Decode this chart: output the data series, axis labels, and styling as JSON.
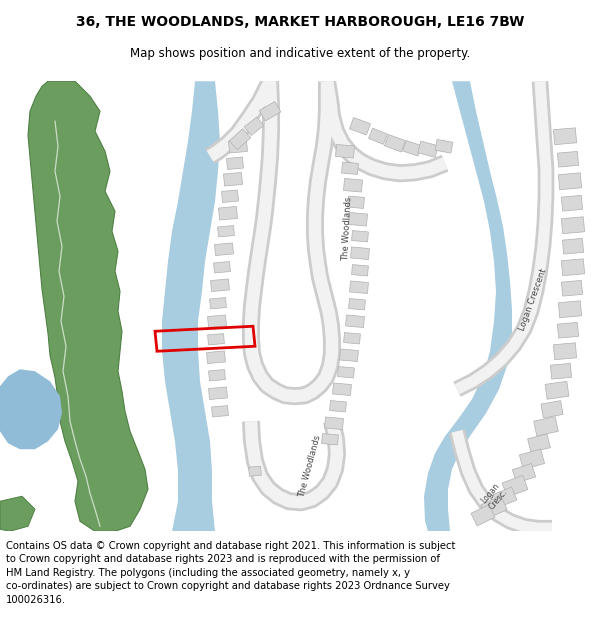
{
  "title": "36, THE WOODLANDS, MARKET HARBOROUGH, LE16 7BW",
  "subtitle": "Map shows position and indicative extent of the property.",
  "footer": "Contains OS data © Crown copyright and database right 2021. This information is subject\nto Crown copyright and database rights 2023 and is reproduced with the permission of\nHM Land Registry. The polygons (including the associated geometry, namely x, y\nco-ordinates) are subject to Crown copyright and database rights 2023 Ordnance Survey\n100026316.",
  "bg_color": "#ffffff",
  "river_color": "#a8cce0",
  "green_color": "#6b9e5e",
  "green_outline": "#4f8045",
  "water_color": "#90bcd8",
  "building_color": "#d8d8d8",
  "building_outline": "#b0b0b0",
  "road_fill": "#f2f2f2",
  "road_outline": "#cccccc",
  "plot_color": "#e00000",
  "label_color": "#444444",
  "title_fontsize": 10,
  "subtitle_fontsize": 8.5,
  "footer_fontsize": 7.2
}
